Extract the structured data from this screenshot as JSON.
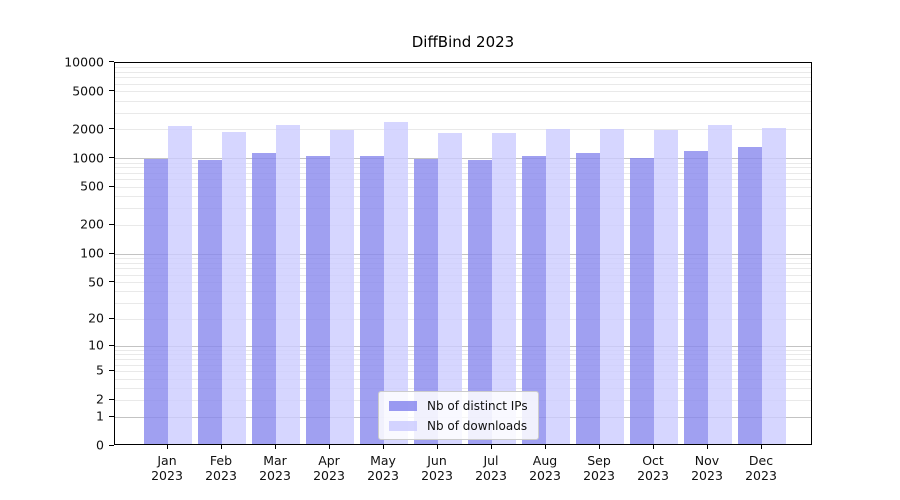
{
  "title": "DiffBind 2023",
  "legend": {
    "items": [
      {
        "label": "Nb of distinct IPs",
        "color": "#8888ee"
      },
      {
        "label": "Nb of downloads",
        "color": "#ccccff"
      }
    ]
  },
  "chart_data": {
    "type": "bar",
    "title": "DiffBind 2023",
    "months": [
      "Jan",
      "Feb",
      "Mar",
      "Apr",
      "May",
      "Jun",
      "Jul",
      "Aug",
      "Sep",
      "Oct",
      "Nov",
      "Dec"
    ],
    "year": "2023",
    "categories": [
      "Jan 2023",
      "Feb 2023",
      "Mar 2023",
      "Apr 2023",
      "May 2023",
      "Jun 2023",
      "Jul 2023",
      "Aug 2023",
      "Sep 2023",
      "Oct 2023",
      "Nov 2023",
      "Dec 2023"
    ],
    "series": [
      {
        "name": "Nb of distinct IPs",
        "color": "#8888ee",
        "values": [
          955,
          935,
          1100,
          1015,
          1030,
          950,
          920,
          1020,
          1090,
          980,
          1145,
          1270
        ]
      },
      {
        "name": "Nb of downloads",
        "color": "#ccccff",
        "values": [
          2090,
          1815,
          2150,
          1910,
          2330,
          1760,
          1755,
          1965,
          1935,
          1895,
          2145,
          1980
        ]
      }
    ],
    "y_scale": "log10(1+v)",
    "ylim": [
      0,
      10000
    ],
    "y_ticks": [
      0,
      1,
      2,
      5,
      10,
      20,
      50,
      100,
      200,
      500,
      1000,
      2000,
      5000,
      10000
    ],
    "grid": "horizontal major decades + log minors",
    "grid_major_color": "#c3c3c3",
    "grid_minor_color": "#e9e9e9",
    "legend_position": "inside lower-center"
  }
}
